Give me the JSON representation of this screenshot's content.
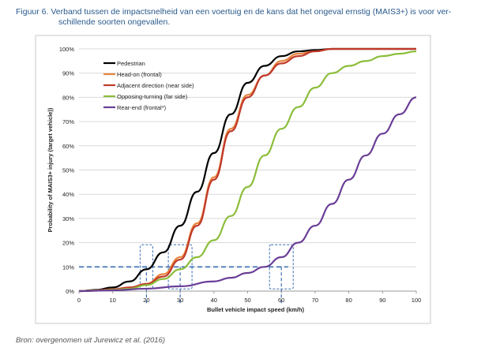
{
  "caption": {
    "line1": "Figuur 6. Verband tussen de impactsnelheid van een voertuig en de kans dat het ongeval ernstig (MAIS3+) is voor ver-",
    "line2": "schillende soorten ongevallen."
  },
  "source": "Bron: overgenomen uit Jurewicz et al. (2016)",
  "chart_data": {
    "type": "line",
    "xlabel": "Bullet vehicle impact speed (km/h)",
    "ylabel": "Probability of MAIS3+ injury  (target vehicle))",
    "xlim": [
      0,
      100
    ],
    "ylim": [
      0,
      100
    ],
    "x_ticks": [
      0,
      10,
      20,
      30,
      40,
      50,
      60,
      70,
      80,
      90,
      100
    ],
    "x_tick_labels": [
      "0",
      "10",
      "20",
      "30",
      "40",
      "50",
      "60",
      "70",
      "80",
      "90",
      "100"
    ],
    "y_ticks": [
      0,
      10,
      20,
      30,
      40,
      50,
      60,
      70,
      80,
      90,
      100
    ],
    "y_tick_labels": [
      "0%",
      "10%",
      "20%",
      "30%",
      "40%",
      "50%",
      "60%",
      "70%",
      "80%",
      "90%",
      "100%"
    ],
    "grid": "horizontal",
    "legend_position": "top-left",
    "series": [
      {
        "name": "Pedestrian",
        "color": "#000000",
        "x": [
          0,
          5,
          10,
          15,
          20,
          25,
          30,
          35,
          40,
          45,
          50,
          55,
          60,
          65,
          70,
          75,
          80,
          90,
          100
        ],
        "y": [
          0,
          0.5,
          1.5,
          4,
          9,
          16,
          27,
          41,
          57,
          73,
          86,
          93,
          97,
          99,
          99.5,
          100,
          100,
          100,
          100
        ]
      },
      {
        "name": "Head-on (frontal)",
        "color": "#e8843c",
        "x": [
          0,
          5,
          10,
          15,
          20,
          25,
          30,
          35,
          40,
          45,
          50,
          55,
          60,
          65,
          70,
          75,
          80,
          90,
          100
        ],
        "y": [
          0,
          0.3,
          0.7,
          1.5,
          3,
          7,
          14,
          28,
          47,
          67,
          81,
          89,
          95,
          98,
          99,
          100,
          100,
          100,
          100
        ]
      },
      {
        "name": "Adjacent direction (near side)",
        "color": "#c0392b",
        "x": [
          0,
          5,
          10,
          15,
          20,
          25,
          30,
          35,
          40,
          45,
          50,
          55,
          60,
          65,
          70,
          75,
          80,
          90,
          100
        ],
        "y": [
          0,
          0.3,
          0.7,
          1.5,
          3,
          6,
          13,
          27,
          46,
          66,
          80,
          89,
          94,
          97,
          99,
          100,
          100,
          100,
          100
        ]
      },
      {
        "name": "Opposing-turning (far side)",
        "color": "#8bbd3a",
        "x": [
          0,
          5,
          10,
          15,
          20,
          25,
          30,
          35,
          40,
          45,
          50,
          55,
          60,
          65,
          70,
          75,
          80,
          85,
          90,
          95,
          100
        ],
        "y": [
          0,
          0.2,
          0.5,
          1,
          2.5,
          5,
          9,
          14,
          21,
          31,
          43,
          56,
          67,
          76,
          84,
          90,
          93,
          95,
          97,
          98,
          99
        ]
      },
      {
        "name": "Rear-end (frontal*)",
        "color": "#6a3e97",
        "x": [
          0,
          10,
          20,
          30,
          40,
          45,
          50,
          55,
          60,
          65,
          70,
          75,
          80,
          85,
          90,
          95,
          100
        ],
        "y": [
          0,
          0.3,
          1,
          2,
          4,
          5.5,
          7.5,
          10,
          14,
          20,
          27,
          36,
          46,
          56,
          65,
          73,
          80
        ]
      }
    ],
    "annotations": {
      "reference_line_y": 10,
      "highlight_x": [
        20,
        30,
        60
      ],
      "highlight_x_labels": [
        "20",
        "30",
        "60"
      ]
    }
  }
}
